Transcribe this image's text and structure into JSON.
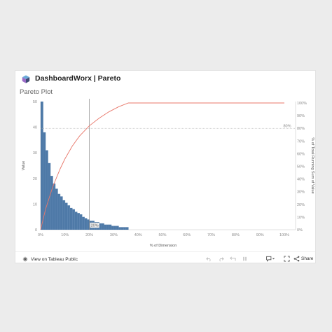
{
  "header": {
    "app_title": "DashboardWorx | Pareto",
    "logo_icon": "dashboardworx-cube-logo"
  },
  "page_title": "Pareto Plot",
  "footer": {
    "view_link_label": "View on Tableau Public",
    "share_label": "Share",
    "toolbar_icons": [
      "undo-icon",
      "redo-icon",
      "revert-icon",
      "pause-icon",
      "comment-icon",
      "fullscreen-icon",
      "share-icon"
    ]
  },
  "colors": {
    "bar": "#4e79a7",
    "line": "#e8776a",
    "reference": "#888888",
    "axis_text": "#8a8a8a"
  },
  "chart_data": {
    "type": "bar",
    "title": "",
    "xlabel": "% of Dimension",
    "ylabel_left": "Value",
    "ylabel_right": "% of Total Running Sum of Value",
    "x_ticks": [
      "0%",
      "10%",
      "20%",
      "30%",
      "40%",
      "50%",
      "60%",
      "70%",
      "80%",
      "90%",
      "100%"
    ],
    "y_left_ticks": [
      0,
      10,
      20,
      30,
      40,
      50
    ],
    "y_right_ticks": [
      "0%",
      "10%",
      "20%",
      "30%",
      "40%",
      "50%",
      "60%",
      "70%",
      "80%",
      "90%",
      "100%"
    ],
    "xlim": [
      0,
      1
    ],
    "ylim_left": [
      0,
      50
    ],
    "ylim_right": [
      0,
      1
    ],
    "bars": {
      "x": [
        0.0,
        0.01,
        0.02,
        0.03,
        0.04,
        0.05,
        0.06,
        0.07,
        0.08,
        0.09,
        0.1,
        0.11,
        0.12,
        0.13,
        0.14,
        0.15,
        0.16,
        0.17,
        0.18,
        0.19,
        0.2,
        0.21,
        0.22,
        0.23,
        0.24,
        0.25,
        0.26,
        0.27,
        0.28,
        0.29,
        0.3,
        0.31,
        0.32,
        0.33,
        0.34,
        0.35
      ],
      "values": [
        50,
        38,
        31,
        26,
        21,
        18,
        16,
        14,
        13,
        11.5,
        10.5,
        9.5,
        8.5,
        8,
        7,
        6.5,
        6,
        5,
        4.5,
        4,
        3.5,
        3.5,
        3,
        3,
        2.5,
        2.5,
        2,
        2,
        2,
        1.5,
        1.5,
        1.5,
        1,
        1,
        1,
        1
      ]
    },
    "running_pct": {
      "x": [
        0.0,
        0.02,
        0.05,
        0.08,
        0.1,
        0.13,
        0.16,
        0.2,
        0.24,
        0.28,
        0.32,
        0.36,
        0.4,
        0.5,
        0.6,
        0.7,
        0.8,
        0.9,
        1.0
      ],
      "values": [
        0.0,
        0.16,
        0.34,
        0.48,
        0.56,
        0.66,
        0.74,
        0.82,
        0.88,
        0.93,
        0.97,
        1.0,
        1.0,
        1.0,
        1.0,
        1.0,
        1.0,
        1.0,
        1.0
      ]
    },
    "reference_lines": {
      "vertical_x": 0.2,
      "vertical_label": "20%",
      "horizontal_y": 0.8,
      "horizontal_label": "80%"
    },
    "grid": false
  }
}
